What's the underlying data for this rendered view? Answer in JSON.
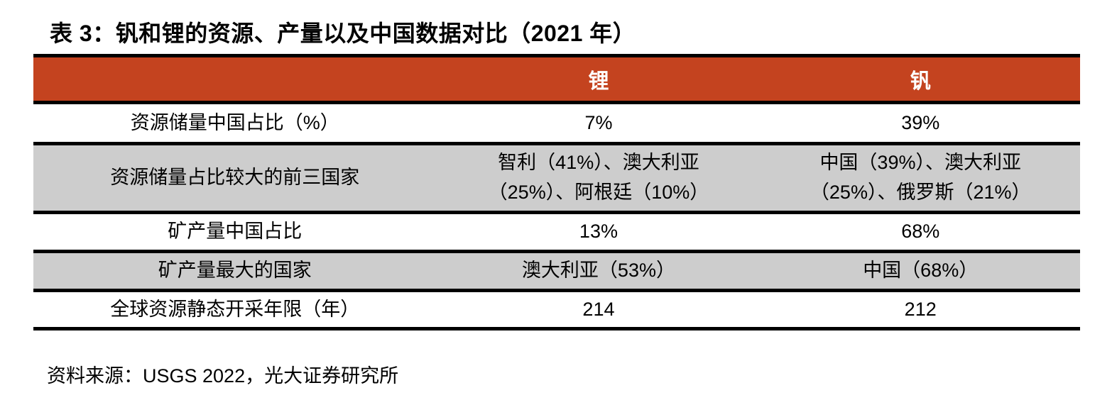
{
  "page": {
    "title": "表 3：钒和锂的资源、产量以及中国数据对比（2021 年）",
    "source_note": "资料来源：USGS 2022，光大证券研究所"
  },
  "colors": {
    "header_bg": "#C4431F",
    "alt_row_bg": "#CDCDCD",
    "border": "#000000",
    "header_text": "#FFFFFF"
  },
  "table": {
    "columns": [
      {
        "label": ""
      },
      {
        "label": "锂"
      },
      {
        "label": "钒"
      }
    ],
    "rows": [
      {
        "label": "资源储量中国占比（%）",
        "lithium": "7%",
        "vanadium": "39%"
      },
      {
        "label": "资源储量占比较大的前三国家",
        "lithium": "智利（41%）、澳大利亚（25%）、阿根廷（10%）",
        "vanadium": "中国（39%）、澳大利亚（25%）、俄罗斯（21%）"
      },
      {
        "label": "矿产量中国占比",
        "lithium": "13%",
        "vanadium": "68%"
      },
      {
        "label": "矿产量最大的国家",
        "lithium": "澳大利亚（53%）",
        "vanadium": "中国（68%）"
      },
      {
        "label": "全球资源静态开采年限（年）",
        "lithium": "214",
        "vanadium": "212"
      }
    ]
  }
}
